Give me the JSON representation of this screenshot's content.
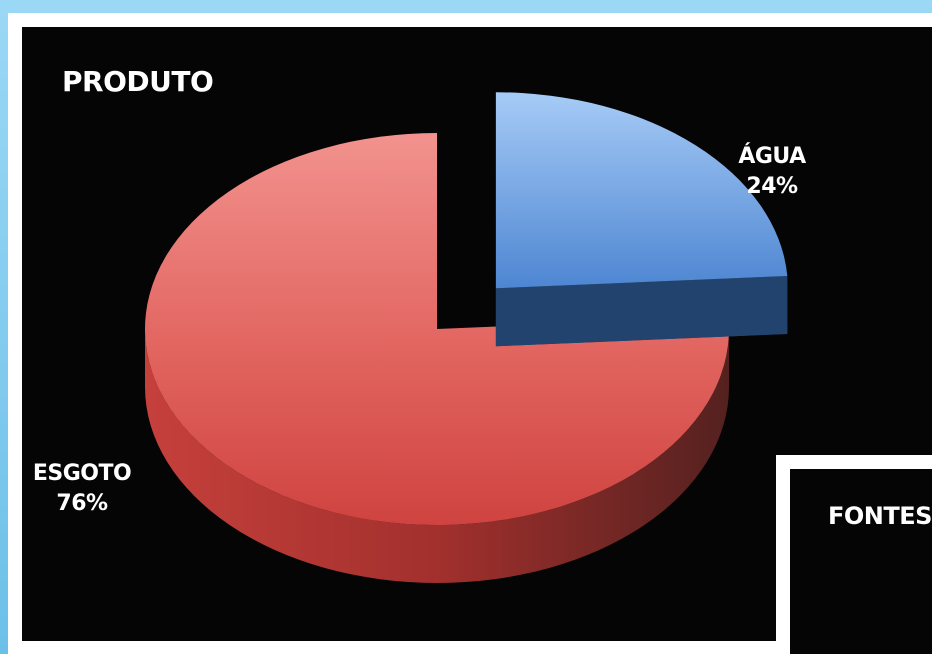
{
  "chart_data": [
    {
      "type": "pie",
      "title": "PRODUTO",
      "slices": [
        {
          "label": "ÁGUA",
          "value": 24,
          "value_label": "24%",
          "exploded": true
        },
        {
          "label": "ESGOTO",
          "value": 76,
          "value_label": "76%",
          "exploded": false
        }
      ],
      "style": "3d-exploded",
      "colors": {
        "ÁGUA": "#5b8fd6",
        "ESGOTO": "#d24a48",
        "background": "#050505"
      }
    },
    {
      "type": "pie",
      "title": "FONTES",
      "slices": []
    }
  ]
}
